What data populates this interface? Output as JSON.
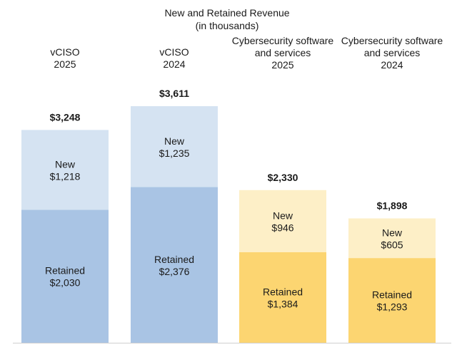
{
  "chart_data": {
    "type": "bar",
    "stacked": true,
    "title": "New and Retained Revenue",
    "subtitle": "(in thousands)",
    "categories": [
      [
        "vCISO",
        "2025"
      ],
      [
        "vCISO",
        "2024"
      ],
      [
        "Cybersecurity software",
        "and services",
        "2025"
      ],
      [
        "Cybersecurity software",
        "and services",
        "2024"
      ]
    ],
    "series": [
      {
        "name": "Retained",
        "values": [
          2030,
          2376,
          1384,
          1293
        ]
      },
      {
        "name": "New",
        "values": [
          1218,
          1235,
          946,
          605
        ]
      }
    ],
    "totals": [
      3248,
      3611,
      2330,
      1898
    ],
    "value_labels": {
      "Retained": [
        "$2,030",
        "$2,376",
        "$1,384",
        "$1,293"
      ],
      "New": [
        "$1,218",
        "$1,235",
        "$946",
        "$605"
      ],
      "total": [
        "$3,248",
        "$3,611",
        "$2,330",
        "$1,898"
      ]
    },
    "colors": {
      "vciso_retained": "#a9c4e4",
      "vciso_new": "#d5e3f2",
      "cyber_retained": "#fcd571",
      "cyber_new": "#fdefc7",
      "baseline": "#d0d0d0"
    },
    "ylim": [
      0,
      3611
    ],
    "grid": false,
    "legend": "none"
  }
}
